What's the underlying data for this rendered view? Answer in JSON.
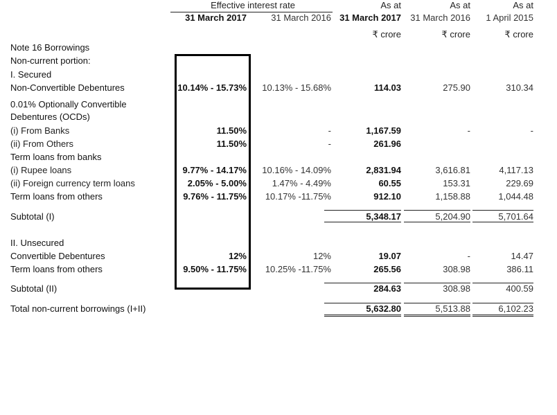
{
  "header": {
    "rate_group": "Effective interest rate",
    "rate_2017": "31 March 2017",
    "rate_2016": "31 March 2016",
    "as_at": [
      "As at",
      "As at",
      "As at"
    ],
    "dates": [
      "31 March 2017",
      "31 March 2016",
      "1 April 2015"
    ],
    "units": [
      "₹ crore",
      "₹ crore",
      "₹ crore"
    ]
  },
  "rows": [
    {
      "label": "Note 16 Borrowings",
      "r17": "",
      "r16": "",
      "v": [
        "",
        "",
        ""
      ]
    },
    {
      "label": "Non-current portion:",
      "r17": "",
      "r16": "",
      "v": [
        "",
        "",
        ""
      ]
    },
    {
      "label": "I.   Secured",
      "r17": "",
      "r16": "",
      "v": [
        "",
        "",
        ""
      ]
    },
    {
      "label": "Non-Convertible Debentures",
      "r17": "10.14% - 15.73%",
      "r16": "10.13% - 15.68%",
      "v": [
        "114.03",
        "275.90",
        "310.34"
      ]
    },
    {
      "label": "0.01% Optionally Convertible",
      "r17": "",
      "r16": "",
      "v": [
        "",
        "",
        ""
      ]
    },
    {
      "label": "Debentures (OCDs)",
      "r17": "",
      "r16": "",
      "v": [
        "",
        "",
        ""
      ]
    },
    {
      "label": "(i)   From Banks",
      "r17": "11.50%",
      "r16": "-",
      "v": [
        "1,167.59",
        "-",
        "-"
      ]
    },
    {
      "label": "(ii)  From Others",
      "r17": "11.50%",
      "r16": "-",
      "v": [
        "261.96",
        "",
        ""
      ]
    },
    {
      "label": "Term loans from banks",
      "r17": "",
      "r16": "",
      "v": [
        "",
        "",
        ""
      ]
    },
    {
      "label": "(i)   Rupee loans",
      "r17": "9.77% - 14.17%",
      "r16": "10.16% - 14.09%",
      "v": [
        "2,831.94",
        "3,616.81",
        "4,117.13"
      ]
    },
    {
      "label": "(ii)  Foreign currency term loans",
      "r17": "2.05% - 5.00%",
      "r16": "1.47% - 4.49%",
      "v": [
        "60.55",
        "153.31",
        "229.69"
      ]
    },
    {
      "label": "Term loans from others",
      "r17": "9.76% - 11.75%",
      "r16": "10.17% -11.75%",
      "v": [
        "912.10",
        "1,158.88",
        "1,044.48"
      ]
    },
    {
      "label": "Subtotal (I)",
      "r17": "",
      "r16": "",
      "v": [
        "5,348.17",
        "5,204.90",
        "5,701.64"
      ]
    },
    {
      "label": "II.  Unsecured",
      "r17": "",
      "r16": "",
      "v": [
        "",
        "",
        ""
      ]
    },
    {
      "label": "Convertible Debentures",
      "r17": "12%",
      "r16": "12%",
      "v": [
        "19.07",
        "-",
        "14.47"
      ]
    },
    {
      "label": "Term loans from others",
      "r17": "9.50% - 11.75%",
      "r16": "10.25% -11.75%",
      "v": [
        "265.56",
        "308.98",
        "386.11"
      ]
    },
    {
      "label": "Subtotal (II)",
      "r17": "",
      "r16": "",
      "v": [
        "284.63",
        "308.98",
        "400.59"
      ]
    },
    {
      "label": "Total non-current borrowings (I+II)",
      "r17": "",
      "r16": "",
      "v": [
        "5,632.80",
        "5,513.88",
        "6,102.23"
      ]
    }
  ]
}
